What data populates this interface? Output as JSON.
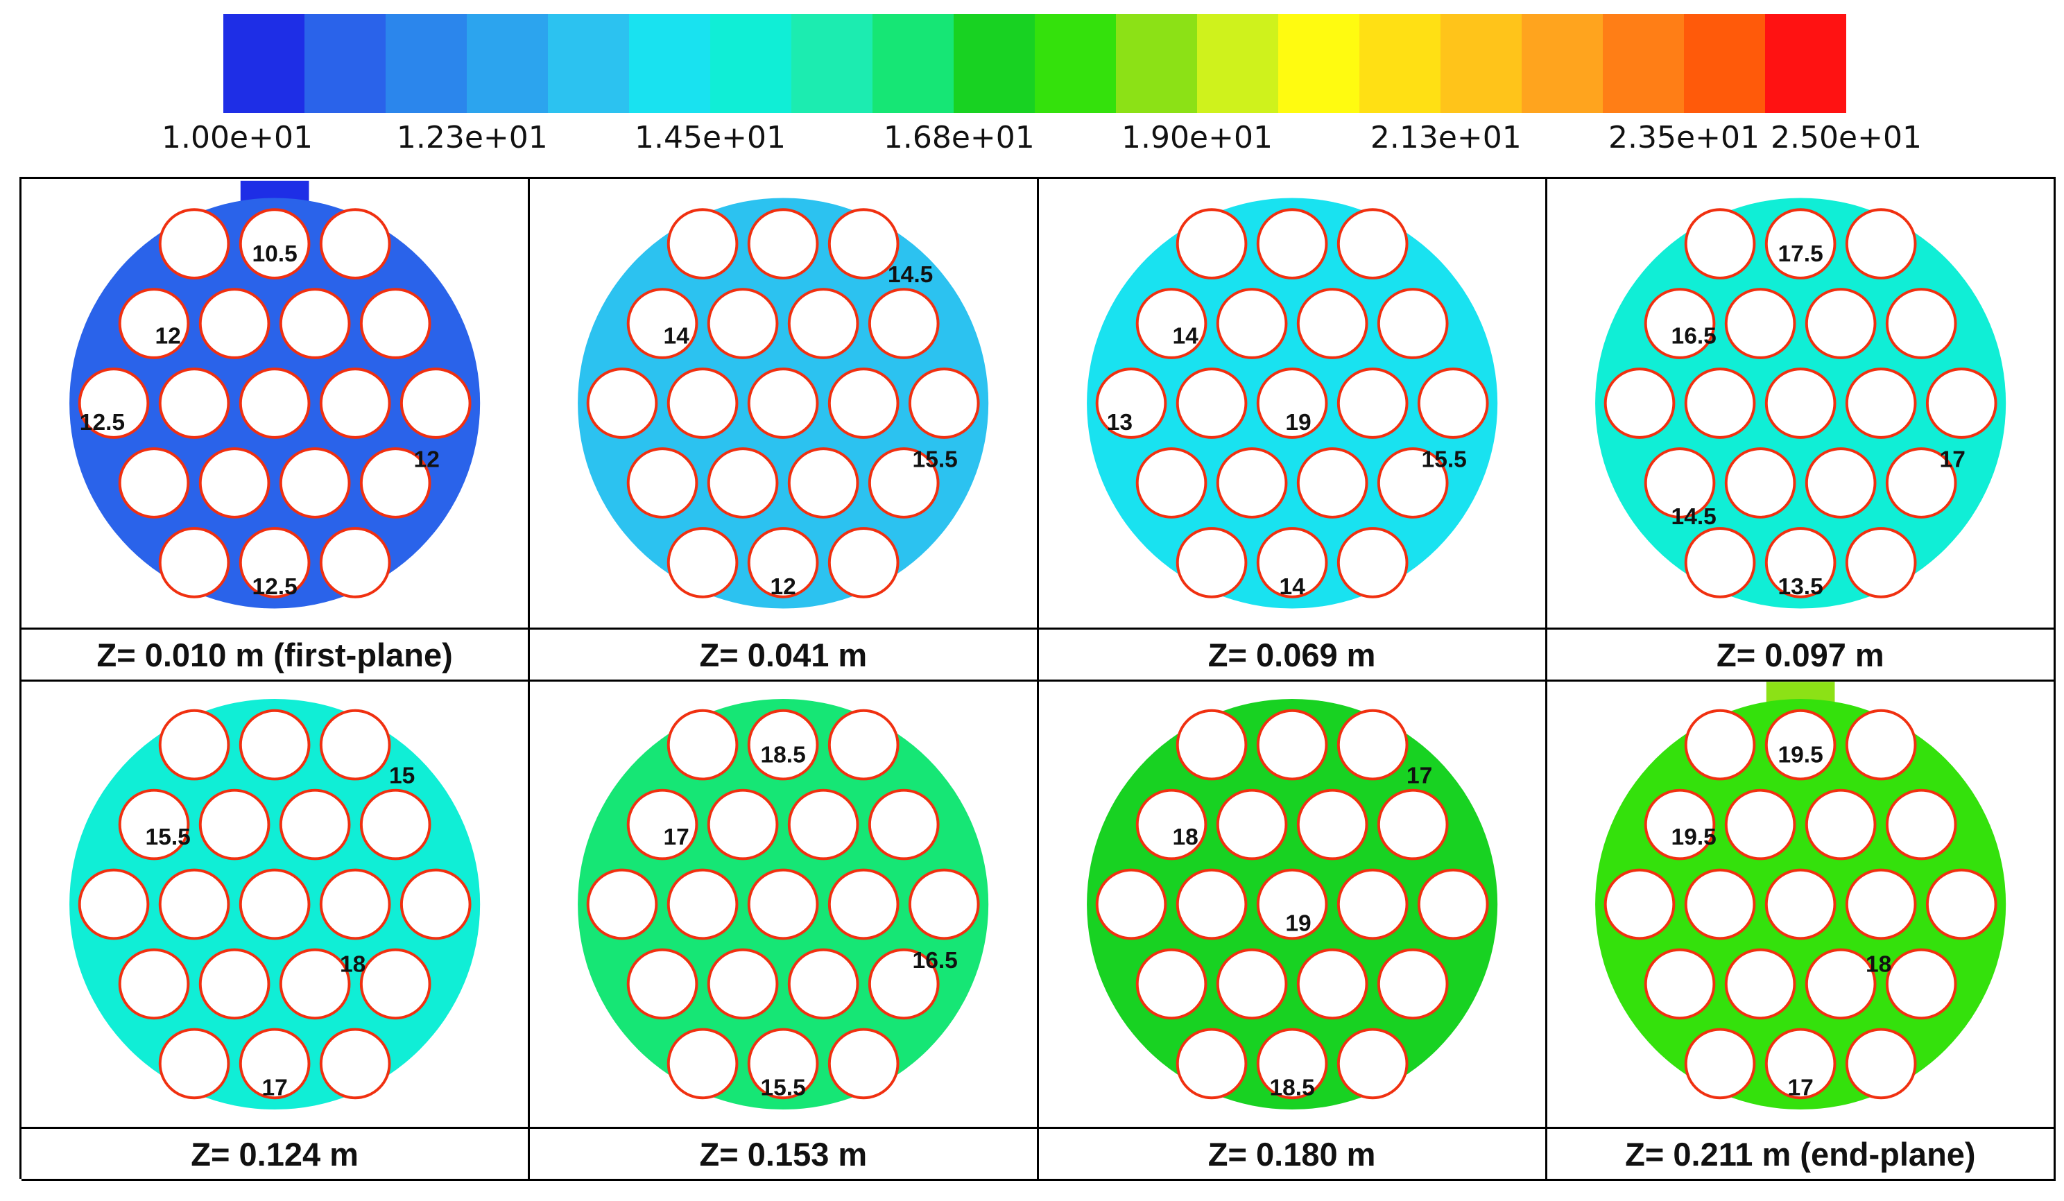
{
  "colorbar": {
    "colors": [
      "#1e2ee6",
      "#2a63ea",
      "#2b86ec",
      "#2ca4ee",
      "#2cc2f0",
      "#19e2f0",
      "#10eed6",
      "#1cecb0",
      "#16e675",
      "#18d222",
      "#34e10c",
      "#8ce116",
      "#cff21c",
      "#fffb10",
      "#ffe014",
      "#ffc41a",
      "#ffa41e",
      "#ff7e16",
      "#ff5a0a",
      "#ff1212"
    ],
    "tick_labels": [
      {
        "text": "1.00e+01",
        "value": 10.0
      },
      {
        "text": "1.23e+01",
        "value": 12.3
      },
      {
        "text": "1.45e+01",
        "value": 14.5
      },
      {
        "text": "1.68e+01",
        "value": 16.8
      },
      {
        "text": "1.90e+01",
        "value": 19.0
      },
      {
        "text": "2.13e+01",
        "value": 21.3
      },
      {
        "text": "2.35e+01",
        "value": 23.5
      },
      {
        "text": "2.50e+01",
        "value": 25.0
      }
    ],
    "min": 10.0,
    "max": 25.0
  },
  "planes": [
    {
      "caption": "Z= 0.010 m (first-plane)",
      "inlet": "top",
      "background": "#2a63ea",
      "inlet_color": "#1e2ee6",
      "labels": [
        {
          "text": "10.5",
          "region": "top-center"
        },
        {
          "text": "12",
          "region": "upper-left"
        },
        {
          "text": "12.5",
          "region": "left"
        },
        {
          "text": "12",
          "region": "right"
        },
        {
          "text": "12.5",
          "region": "bottom"
        }
      ]
    },
    {
      "caption": "Z= 0.041 m",
      "inlet": "none",
      "background": "#2cc2f0",
      "labels": [
        {
          "text": "14.5",
          "region": "top-right"
        },
        {
          "text": "14",
          "region": "upper-left"
        },
        {
          "text": "15.5",
          "region": "right"
        },
        {
          "text": "12",
          "region": "bottom"
        }
      ]
    },
    {
      "caption": "Z= 0.069 m",
      "inlet": "none",
      "background": "#19e2f0",
      "labels": [
        {
          "text": "14",
          "region": "upper-left"
        },
        {
          "text": "15.5",
          "region": "right"
        },
        {
          "text": "19",
          "region": "center"
        },
        {
          "text": "13",
          "region": "left"
        },
        {
          "text": "14",
          "region": "bottom"
        }
      ]
    },
    {
      "caption": "Z= 0.097 m",
      "inlet": "none",
      "background": "#10eed6",
      "labels": [
        {
          "text": "16.5",
          "region": "upper-left"
        },
        {
          "text": "17.5",
          "region": "top-center"
        },
        {
          "text": "17",
          "region": "right"
        },
        {
          "text": "14.5",
          "region": "lower-left"
        },
        {
          "text": "13.5",
          "region": "bottom"
        }
      ]
    },
    {
      "caption": "Z= 0.124 m",
      "inlet": "none",
      "background": "#10eed6",
      "labels": [
        {
          "text": "15.5",
          "region": "upper-left"
        },
        {
          "text": "15",
          "region": "top-right"
        },
        {
          "text": "18",
          "region": "lower-right"
        },
        {
          "text": "17",
          "region": "bottom"
        }
      ]
    },
    {
      "caption": "Z= 0.153 m",
      "inlet": "none",
      "background": "#16e675",
      "labels": [
        {
          "text": "18.5",
          "region": "top-center"
        },
        {
          "text": "17",
          "region": "upper-left"
        },
        {
          "text": "16.5",
          "region": "right"
        },
        {
          "text": "15.5",
          "region": "bottom"
        }
      ]
    },
    {
      "caption": "Z= 0.180 m",
      "inlet": "none",
      "background": "#18d222",
      "labels": [
        {
          "text": "18",
          "region": "upper-left"
        },
        {
          "text": "17",
          "region": "top-right"
        },
        {
          "text": "19",
          "region": "center"
        },
        {
          "text": "18.5",
          "region": "bottom"
        }
      ]
    },
    {
      "caption": "Z= 0.211 m (end-plane)",
      "inlet": "top",
      "background": "#34e10c",
      "inlet_color": "#8ce116",
      "labels": [
        {
          "text": "19.5",
          "region": "top-center"
        },
        {
          "text": "19.5",
          "region": "upper-left"
        },
        {
          "text": "18",
          "region": "lower-right"
        },
        {
          "text": "17",
          "region": "bottom"
        }
      ]
    }
  ]
}
